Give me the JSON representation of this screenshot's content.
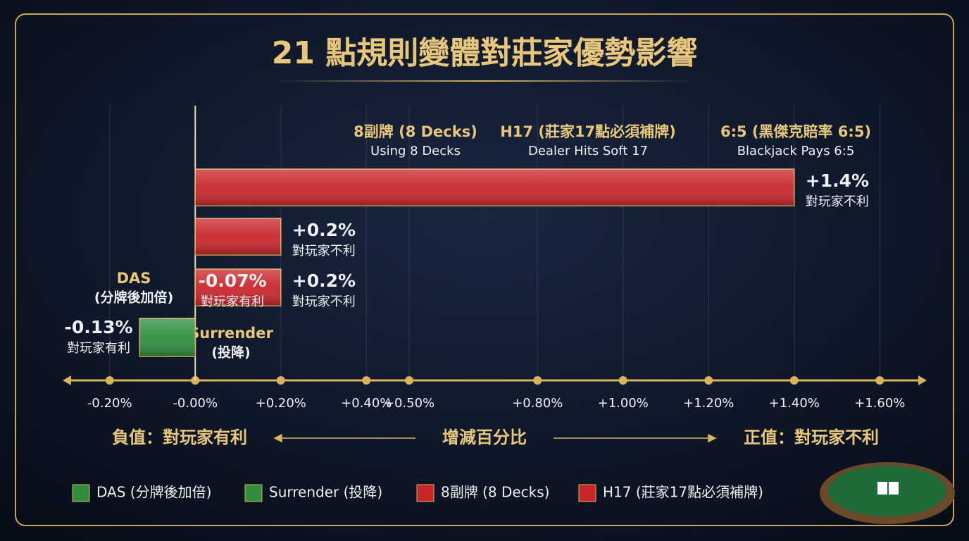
{
  "chart_data": {
    "type": "hbar",
    "title": "21 點規則變體對莊家優勢影響",
    "categories": [
      "6:5 (黑傑克賠率 6:5)",
      "H17 (莊家17點必須補牌)",
      "8副牌 (8 Decks)",
      "Surrender",
      "DAS"
    ],
    "subtitles": [
      "Blackjack Pays 6:5",
      "Dealer Hits Soft 17",
      "Using 8 Decks",
      "(投降)",
      "(分牌後加倍)"
    ],
    "values": [
      1.4,
      0.2,
      0.2,
      -0.07,
      -0.13
    ],
    "value_labels": [
      "+1.4%",
      "+0.2%",
      "+0.2%",
      "-0.07%",
      "-0.13%"
    ],
    "notes": [
      "對玩家不利",
      "對玩家不利",
      "對玩家不利",
      "對玩家有利",
      "對玩家有利"
    ],
    "colors": [
      "#c8262b",
      "#c8262b",
      "#c8262b",
      "#2f8f3f",
      "#2f8f3f"
    ],
    "xlim": [
      -0.3,
      1.7
    ],
    "xticks": [
      {
        "value": -0.2,
        "label": "-0.20%"
      },
      {
        "value": 0,
        "label": "-0.00%"
      },
      {
        "value": 0.2,
        "label": "+0.20%"
      },
      {
        "value": 0.4,
        "label": "+0.40%"
      },
      {
        "value": 0.5,
        "label": "+0.50%"
      },
      {
        "value": 0.8,
        "label": "+0.80%"
      },
      {
        "value": 1.0,
        "label": "+1.00%"
      },
      {
        "value": 1.2,
        "label": "+1.20%"
      },
      {
        "value": 1.4,
        "label": "+1.40%"
      },
      {
        "value": 1.6,
        "label": "+1.60%"
      }
    ],
    "xlabel": "增減百分比",
    "negative_label": "負值：對玩家有利",
    "positive_label": "正值：對玩家不利",
    "grid": true,
    "legend": [
      {
        "label": "DAS (分牌後加倍)",
        "color": "#2f8f3f"
      },
      {
        "label": "Surrender (投降)",
        "color": "#2f8f3f"
      },
      {
        "label": "8副牌 (8 Decks)",
        "color": "#c8262b"
      },
      {
        "label": "H17 (莊家17點必須補牌)",
        "color": "#c8262b"
      }
    ]
  }
}
